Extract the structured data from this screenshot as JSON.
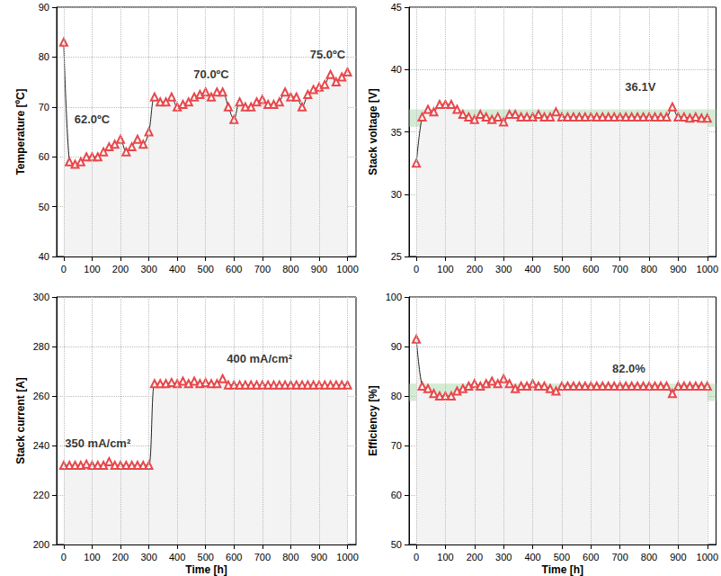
{
  "chart_data": [
    {
      "type": "line",
      "y_label": "Temperature [ºC]",
      "color": "#e8474b",
      "marker": "triangle",
      "line_style": "solid",
      "grid": true,
      "x": [
        0,
        20,
        40,
        60,
        80,
        100,
        120,
        140,
        160,
        180,
        200,
        220,
        240,
        260,
        280,
        300,
        320,
        340,
        360,
        380,
        400,
        420,
        440,
        460,
        480,
        500,
        520,
        540,
        560,
        580,
        600,
        620,
        640,
        660,
        680,
        700,
        720,
        740,
        760,
        780,
        800,
        820,
        840,
        860,
        880,
        900,
        920,
        940,
        960,
        980,
        1000
      ],
      "values": [
        83,
        59,
        58.5,
        59,
        60,
        60,
        60,
        61,
        62,
        62.5,
        63.5,
        61,
        62,
        63.5,
        62.5,
        65,
        72,
        71,
        71,
        72,
        70,
        70.5,
        71,
        72,
        72.5,
        73,
        72,
        73,
        73,
        70,
        67.5,
        71,
        70,
        70,
        71,
        71.5,
        70.5,
        70.5,
        71,
        73,
        72,
        72,
        70,
        72.5,
        73.5,
        74,
        74.5,
        76.5,
        75,
        76,
        77
      ],
      "xlim": [
        -25,
        1030
      ],
      "xticks": [
        0,
        100,
        200,
        300,
        400,
        500,
        600,
        700,
        800,
        900,
        1000
      ],
      "ylim": [
        40,
        90
      ],
      "yticks": [
        40,
        50,
        60,
        70,
        80,
        90
      ],
      "annotations": [
        {
          "text": "62.0ºC",
          "x": 100,
          "y": 67.5
        },
        {
          "text": "70.0ºC",
          "x": 520,
          "y": 76.5
        },
        {
          "text": "75.0ºC",
          "x": 930,
          "y": 80.5
        }
      ]
    },
    {
      "type": "line",
      "y_label": "Stack voltage [V]",
      "color": "#e8474b",
      "marker": "triangle",
      "line_style": "solid",
      "grid": true,
      "x": [
        0,
        20,
        40,
        60,
        80,
        100,
        120,
        140,
        160,
        180,
        200,
        220,
        240,
        260,
        280,
        300,
        320,
        340,
        360,
        380,
        400,
        420,
        440,
        460,
        480,
        500,
        520,
        540,
        560,
        580,
        600,
        620,
        640,
        660,
        680,
        700,
        720,
        740,
        760,
        780,
        800,
        820,
        840,
        860,
        880,
        900,
        920,
        940,
        960,
        980,
        1000
      ],
      "values": [
        32.5,
        36.2,
        36.8,
        36.6,
        37.2,
        37.2,
        37.2,
        36.8,
        36.4,
        36.2,
        36.0,
        36.4,
        36.2,
        36.0,
        36.2,
        35.8,
        36.4,
        36.4,
        36.2,
        36.2,
        36.2,
        36.4,
        36.2,
        36.2,
        36.6,
        36.2,
        36.2,
        36.2,
        36.2,
        36.2,
        36.2,
        36.2,
        36.2,
        36.2,
        36.2,
        36.2,
        36.2,
        36.2,
        36.2,
        36.2,
        36.2,
        36.2,
        36.2,
        36.2,
        37.0,
        36.2,
        36.2,
        36.1,
        36.2,
        36.1,
        36.1
      ],
      "xlim": [
        -25,
        1030
      ],
      "xticks": [
        0,
        100,
        200,
        300,
        400,
        500,
        600,
        700,
        800,
        900,
        1000
      ],
      "ylim": [
        25,
        45
      ],
      "yticks": [
        25,
        30,
        35,
        40,
        45
      ],
      "band": [
        35.4,
        36.8
      ],
      "annotations": [
        {
          "text": "36.1V",
          "x": 770,
          "y": 38.6
        }
      ]
    },
    {
      "type": "line",
      "y_label": "Stack current [A]",
      "x_label": "Time [h]",
      "color": "#e8474b",
      "marker": "triangle",
      "line_style": "solid",
      "grid": true,
      "x": [
        0,
        20,
        40,
        60,
        80,
        100,
        120,
        140,
        160,
        180,
        200,
        220,
        240,
        260,
        280,
        300,
        320,
        340,
        360,
        380,
        400,
        420,
        440,
        460,
        480,
        500,
        520,
        540,
        560,
        580,
        600,
        620,
        640,
        660,
        680,
        700,
        720,
        740,
        760,
        780,
        800,
        820,
        840,
        860,
        880,
        900,
        920,
        940,
        960,
        980,
        1000
      ],
      "values": [
        232,
        232,
        232,
        232,
        232.5,
        232,
        232,
        232,
        233.5,
        232,
        232,
        232,
        232,
        232,
        232,
        232,
        265,
        265,
        265,
        265.5,
        265,
        266,
        265,
        266,
        265,
        265.5,
        265,
        265,
        267,
        264.5,
        264.5,
        264.5,
        264.5,
        264.5,
        264.5,
        264.5,
        264.5,
        264.5,
        264.5,
        264.5,
        264.5,
        264.5,
        264.5,
        264.5,
        264.5,
        264.5,
        264.5,
        264.5,
        264.5,
        264.5,
        264.5
      ],
      "xlim": [
        -25,
        1030
      ],
      "xticks": [
        0,
        100,
        200,
        300,
        400,
        500,
        600,
        700,
        800,
        900,
        1000
      ],
      "ylim": [
        200,
        300
      ],
      "yticks": [
        200,
        220,
        240,
        260,
        280,
        300
      ],
      "annotations": [
        {
          "text": "350 mA/cm²",
          "x": 120,
          "y": 241
        },
        {
          "text": "400 mA/cm²",
          "x": 690,
          "y": 275
        }
      ]
    },
    {
      "type": "line",
      "y_label": "Efficiency [%]",
      "x_label": "Time [h]",
      "color": "#e8474b",
      "marker": "triangle",
      "line_style": "solid",
      "grid": true,
      "x": [
        0,
        20,
        40,
        60,
        80,
        100,
        120,
        140,
        160,
        180,
        200,
        220,
        240,
        260,
        280,
        300,
        320,
        340,
        360,
        380,
        400,
        420,
        440,
        460,
        480,
        500,
        520,
        540,
        560,
        580,
        600,
        620,
        640,
        660,
        680,
        700,
        720,
        740,
        760,
        780,
        800,
        820,
        840,
        860,
        880,
        900,
        920,
        940,
        960,
        980,
        1000
      ],
      "values": [
        91.5,
        82,
        81.5,
        80.5,
        80,
        80,
        80,
        81,
        81.5,
        82,
        82.5,
        82,
        82.5,
        83,
        82.5,
        83.5,
        82.5,
        81.5,
        82,
        82,
        82.5,
        82,
        82,
        81.5,
        81,
        82,
        82,
        82,
        82,
        82,
        82,
        82,
        82,
        82,
        82,
        82,
        82,
        82,
        82,
        82,
        82,
        82,
        82,
        82,
        80.5,
        82,
        82,
        82,
        82,
        82,
        82
      ],
      "xlim": [
        -25,
        1030
      ],
      "xticks": [
        0,
        100,
        200,
        300,
        400,
        500,
        600,
        700,
        800,
        900,
        1000
      ],
      "ylim": [
        50,
        100
      ],
      "yticks": [
        50,
        60,
        70,
        80,
        90,
        100
      ],
      "band": [
        79,
        82.5
      ],
      "annotations": [
        {
          "text": "82.0%",
          "x": 730,
          "y": 85.5
        }
      ]
    }
  ]
}
